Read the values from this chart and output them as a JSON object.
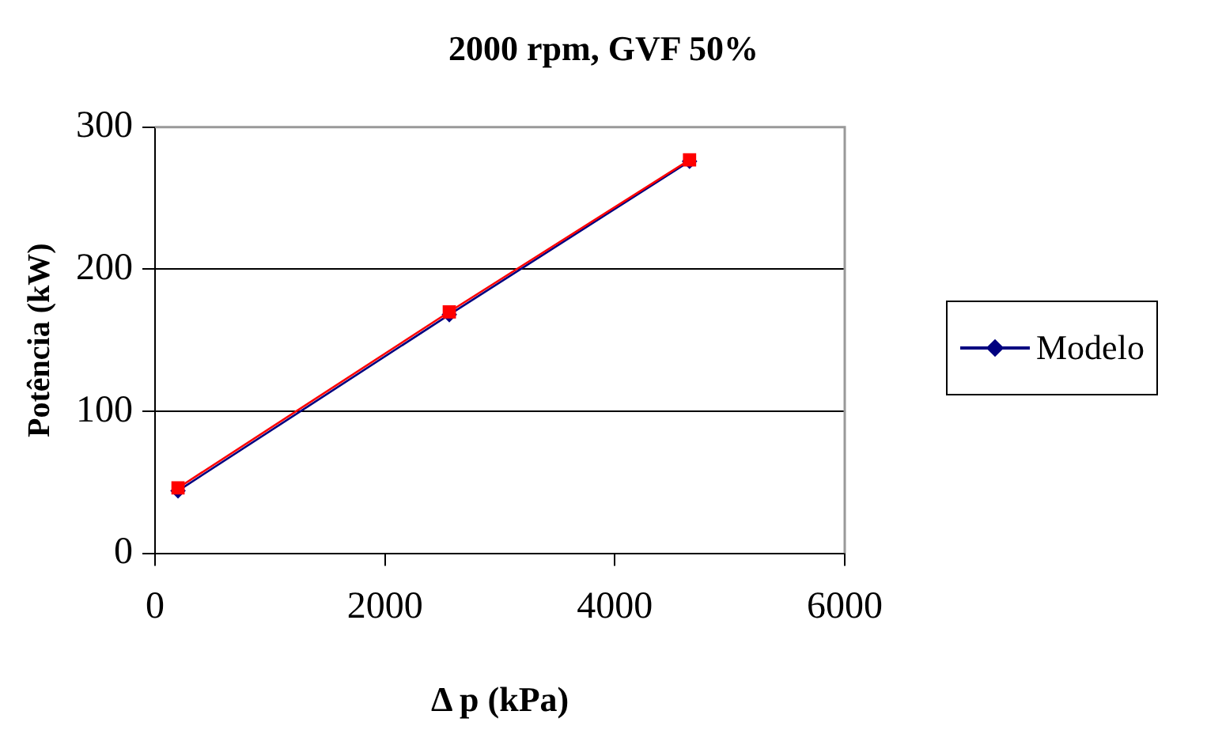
{
  "chart_data": {
    "type": "line",
    "title": "2000 rpm, GVF 50%",
    "xlabel": "Δ p (kPa)",
    "ylabel": "Potência (kW)",
    "xlim": [
      0,
      6000
    ],
    "xticks": [
      0,
      2000,
      4000,
      6000
    ],
    "ylim": [
      0,
      300
    ],
    "yticks": [
      0,
      100,
      200,
      300
    ],
    "grid": "y",
    "legend": "right",
    "series": [
      {
        "name": "Modelo",
        "color": "#000080",
        "marker": "diamond",
        "x": [
          200,
          2560,
          4650
        ],
        "values": [
          44,
          168,
          276
        ]
      },
      {
        "color": "#ff0000",
        "marker": "square",
        "x": [
          200,
          2560,
          4650
        ],
        "values": [
          46,
          170,
          277
        ]
      }
    ]
  }
}
